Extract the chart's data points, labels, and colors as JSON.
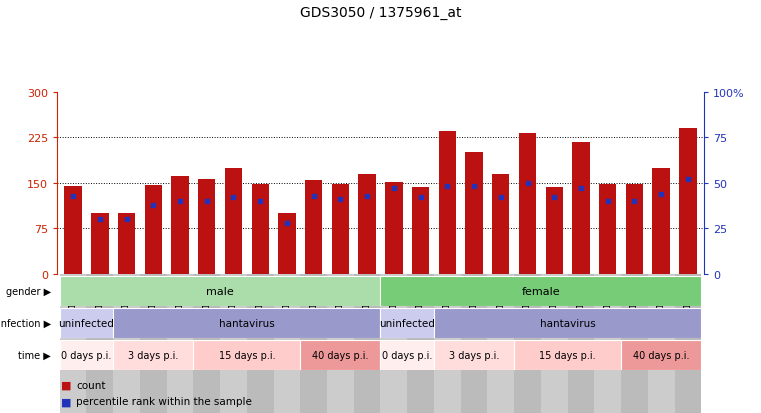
{
  "title": "GDS3050 / 1375961_at",
  "samples": [
    "GSM175452",
    "GSM175453",
    "GSM175454",
    "GSM175455",
    "GSM175456",
    "GSM175457",
    "GSM175458",
    "GSM175459",
    "GSM175460",
    "GSM175461",
    "GSM175462",
    "GSM175463",
    "GSM175440",
    "GSM175441",
    "GSM175442",
    "GSM175443",
    "GSM175444",
    "GSM175445",
    "GSM175446",
    "GSM175447",
    "GSM175448",
    "GSM175449",
    "GSM175450",
    "GSM175451"
  ],
  "counts": [
    145,
    100,
    100,
    147,
    162,
    156,
    175,
    148,
    100,
    155,
    148,
    165,
    152,
    143,
    235,
    200,
    165,
    232,
    143,
    218,
    148,
    148,
    175,
    240
  ],
  "percentiles": [
    43,
    30,
    30,
    38,
    40,
    40,
    42,
    40,
    28,
    43,
    41,
    43,
    47,
    42,
    48,
    48,
    42,
    50,
    42,
    47,
    40,
    40,
    44,
    52
  ],
  "bar_color": "#bb1111",
  "dot_color": "#2233bb",
  "left_tick_color": "#cc2200",
  "right_tick_color": "#2233bb",
  "left_yticks": [
    0,
    75,
    150,
    225,
    300
  ],
  "right_yticks": [
    0,
    25,
    50,
    75,
    100
  ],
  "gender_groups": [
    {
      "label": "male",
      "start": 0,
      "end": 11,
      "color": "#aaddaa"
    },
    {
      "label": "female",
      "start": 12,
      "end": 23,
      "color": "#77cc77"
    }
  ],
  "infection_groups": [
    {
      "label": "uninfected",
      "start": 0,
      "end": 1,
      "color": "#ccccee"
    },
    {
      "label": "hantavirus",
      "start": 2,
      "end": 11,
      "color": "#9999cc"
    },
    {
      "label": "uninfected",
      "start": 12,
      "end": 13,
      "color": "#ccccee"
    },
    {
      "label": "hantavirus",
      "start": 14,
      "end": 23,
      "color": "#9999cc"
    }
  ],
  "time_groups": [
    {
      "label": "0 days p.i.",
      "start": 0,
      "end": 1,
      "color": "#ffeeee"
    },
    {
      "label": "3 days p.i.",
      "start": 2,
      "end": 4,
      "color": "#ffdddd"
    },
    {
      "label": "15 days p.i.",
      "start": 5,
      "end": 8,
      "color": "#ffcccc"
    },
    {
      "label": "40 days p.i.",
      "start": 9,
      "end": 11,
      "color": "#ee9999"
    },
    {
      "label": "0 days p.i.",
      "start": 12,
      "end": 13,
      "color": "#ffeeee"
    },
    {
      "label": "3 days p.i.",
      "start": 14,
      "end": 16,
      "color": "#ffdddd"
    },
    {
      "label": "15 days p.i.",
      "start": 17,
      "end": 20,
      "color": "#ffcccc"
    },
    {
      "label": "40 days p.i.",
      "start": 21,
      "end": 23,
      "color": "#ee9999"
    }
  ],
  "xtick_colors": [
    "#cccccc",
    "#bbbbbb"
  ],
  "row_labels": [
    "gender",
    "infection",
    "time"
  ]
}
